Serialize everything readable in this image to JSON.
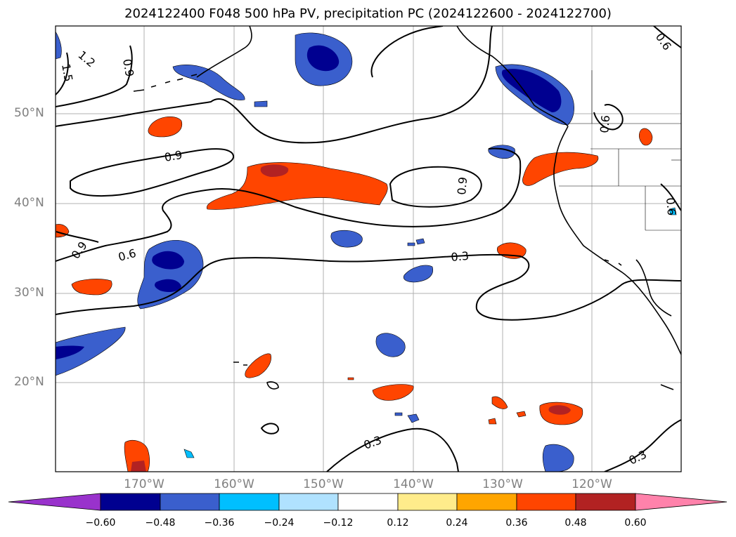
{
  "title": "2024122400 F048 500 hPa PV, precipitation PC (2024122600 - 2024122700)",
  "lat_labels": [
    "50°N",
    "40°N",
    "30°N",
    "20°N"
  ],
  "lon_labels": [
    "170°W",
    "160°W",
    "150°W",
    "140°W",
    "130°W",
    "120°W"
  ],
  "contour_labels": {
    "c1": "1.2",
    "c2": "1.5",
    "c3": "0.9",
    "c4": "0.9",
    "c5": "0.9",
    "c6": "0.9",
    "c7": "0.6",
    "c8": "0.3",
    "c9": "0.3",
    "c10": "0.3",
    "c11": "0.6",
    "c12": "0.6",
    "c13": "0.6"
  },
  "colorbar": {
    "ticks": [
      "−0.60",
      "−0.48",
      "−0.36",
      "−0.24",
      "−0.12",
      "0.12",
      "0.24",
      "0.36",
      "0.48",
      "0.60"
    ],
    "colors": [
      "#9932cc",
      "#000090",
      "#3a5fcd",
      "#00bfff",
      "#b0e2ff",
      "#ffffff",
      "#ffec8b",
      "#ffa500",
      "#ff4500",
      "#b22222",
      "#ff82ab"
    ]
  }
}
